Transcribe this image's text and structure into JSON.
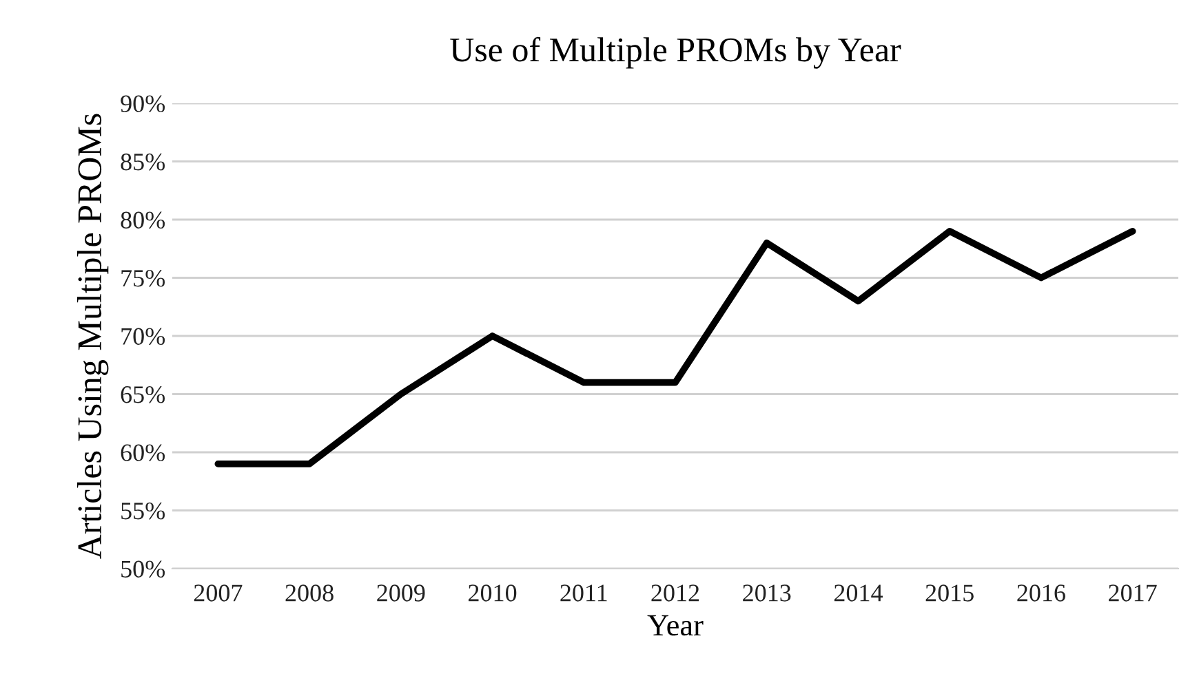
{
  "chart_data": {
    "type": "line",
    "title": "Use of Multiple PROMs by Year",
    "xlabel": "Year",
    "ylabel": "Articles Using Multiple PROMs",
    "categories": [
      "2007",
      "2008",
      "2009",
      "2010",
      "2011",
      "2012",
      "2013",
      "2014",
      "2015",
      "2016",
      "2017"
    ],
    "series": [
      {
        "color": "#000000",
        "values": [
          59,
          59,
          65,
          70,
          66,
          66,
          78,
          73,
          79,
          75,
          79
        ]
      }
    ],
    "ylim": [
      50,
      90
    ],
    "yticks": [
      {
        "value": 50,
        "label": "50%"
      },
      {
        "value": 55,
        "label": "55%"
      },
      {
        "value": 60,
        "label": "60%"
      },
      {
        "value": 65,
        "label": "65%"
      },
      {
        "value": 70,
        "label": "70%"
      },
      {
        "value": 75,
        "label": "75%"
      },
      {
        "value": 80,
        "label": "80%"
      },
      {
        "value": 85,
        "label": "85%"
      },
      {
        "value": 90,
        "label": "90%"
      }
    ],
    "grid": "y",
    "marker": "none",
    "line_style": "solid"
  }
}
